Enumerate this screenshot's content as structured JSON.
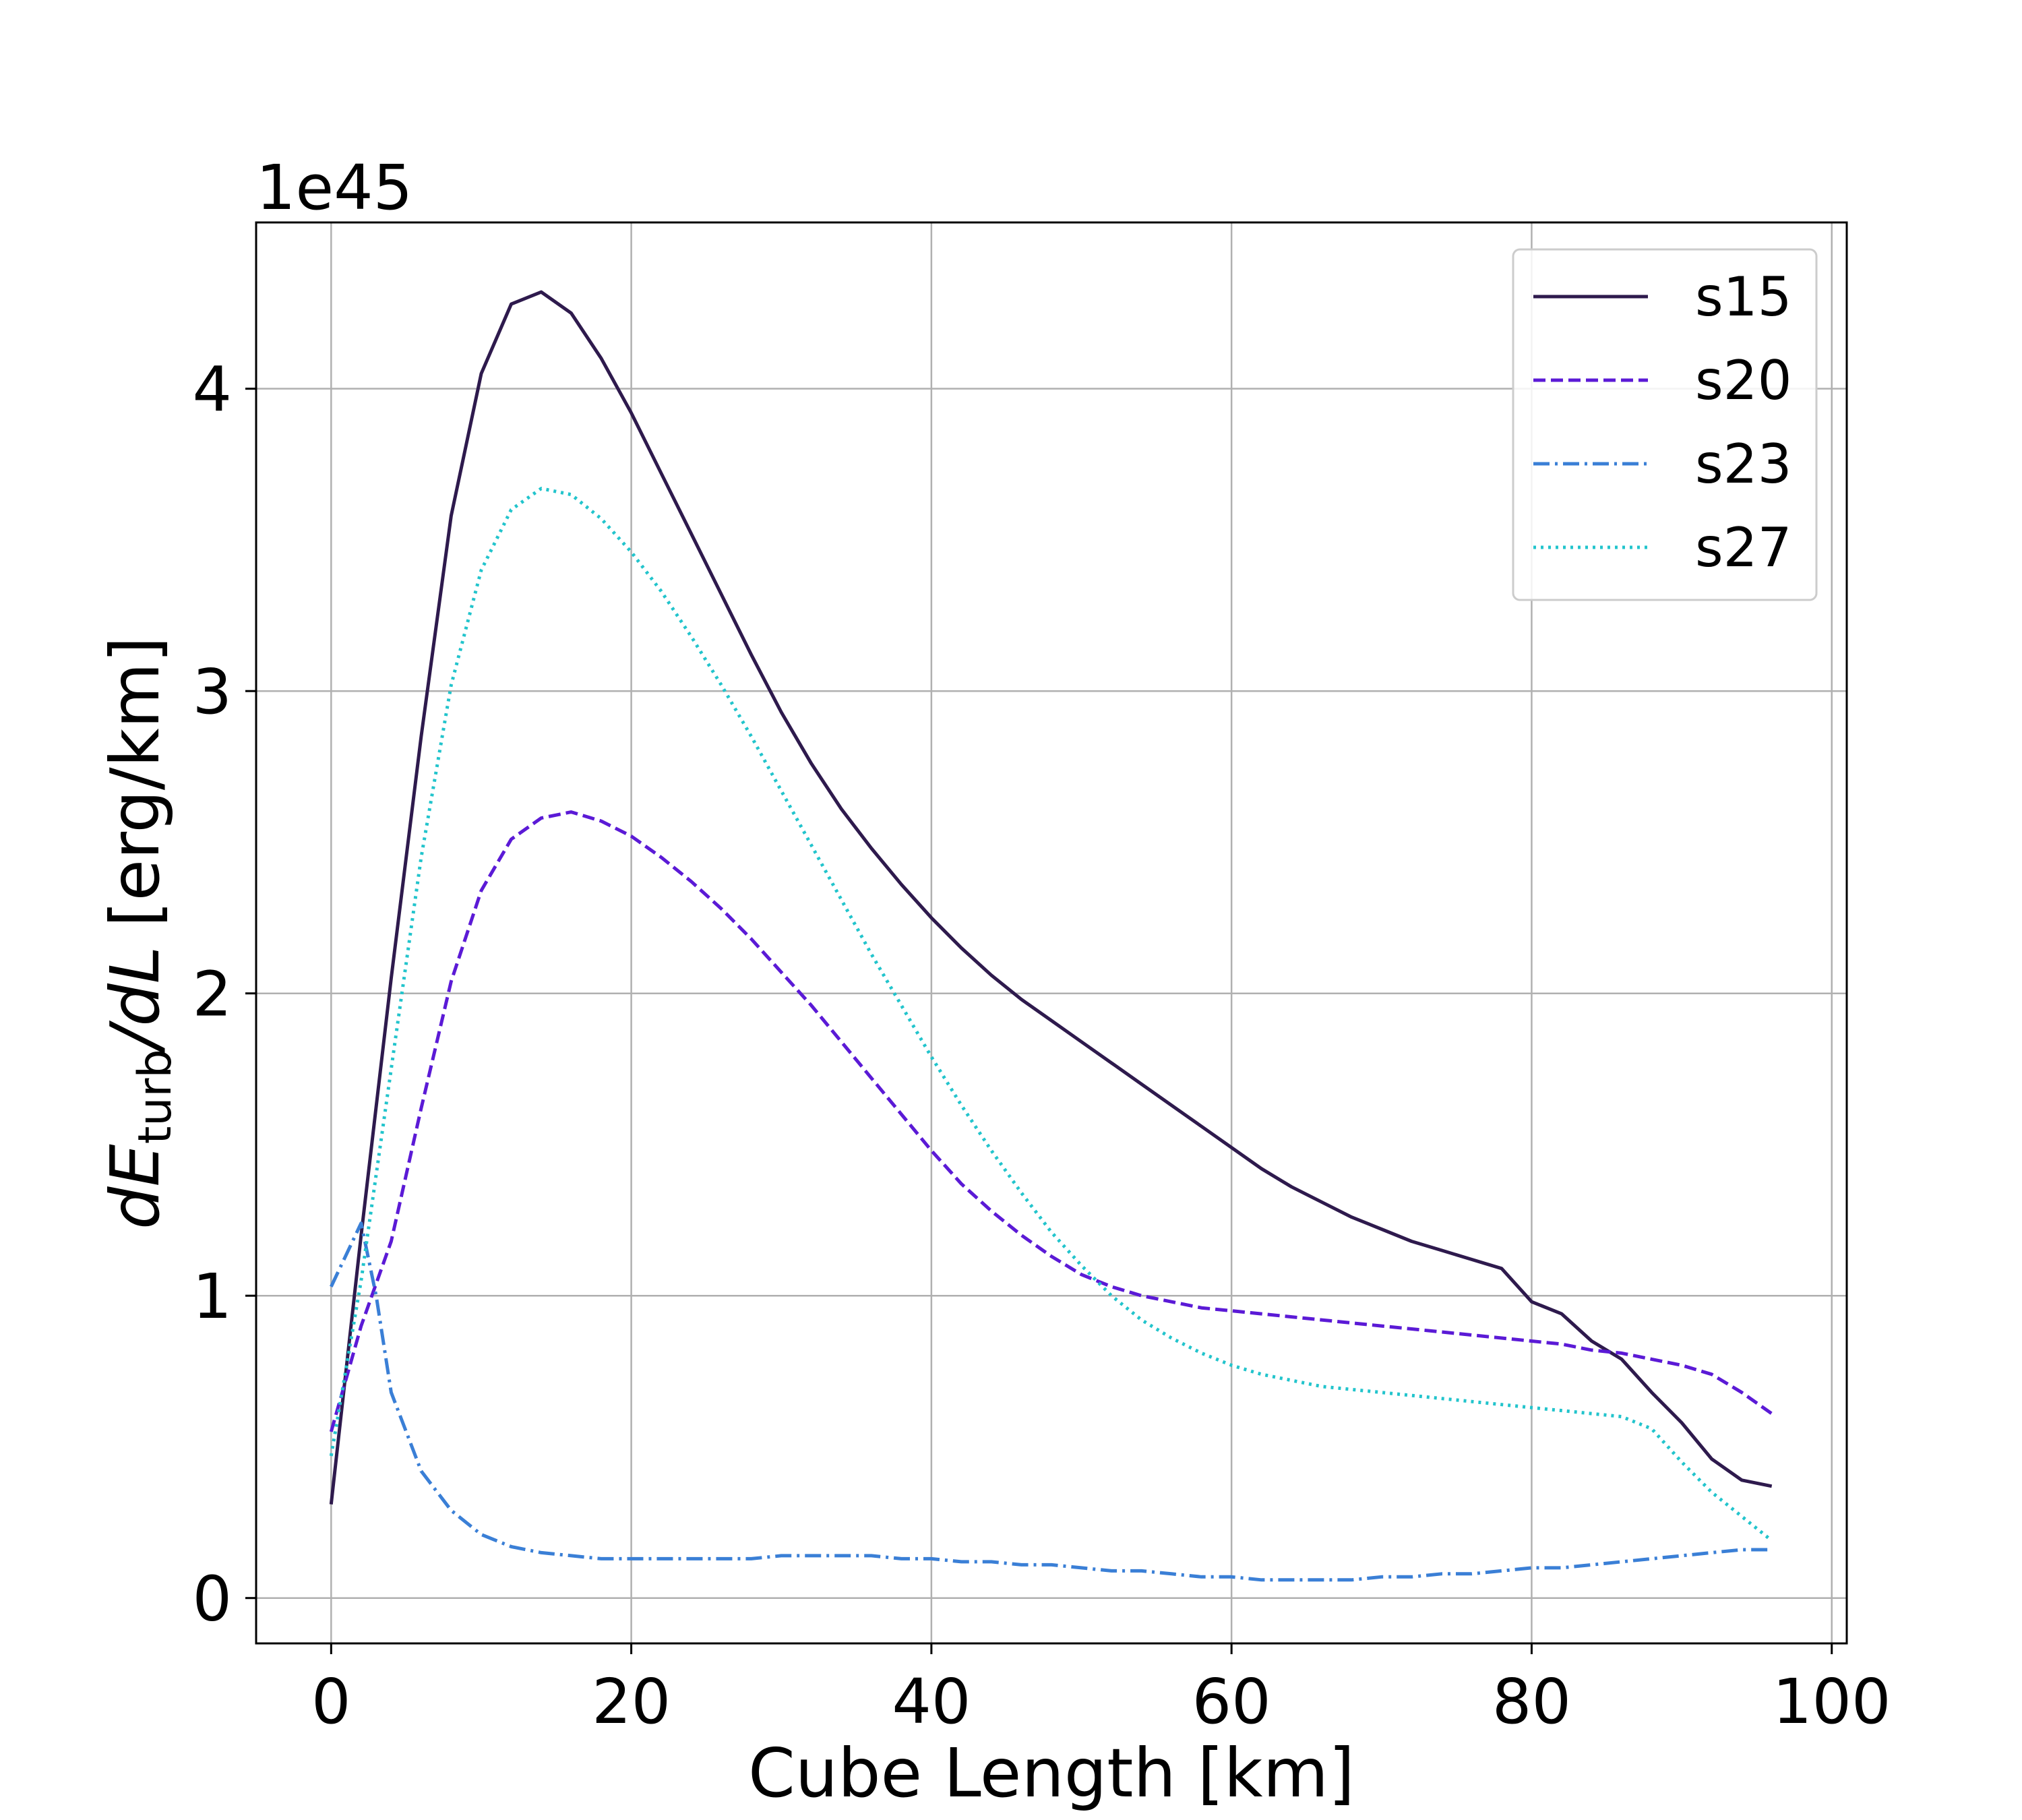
{
  "chart_data": {
    "type": "line",
    "title": "",
    "xlabel": "Cube Length [km]",
    "ylabel": {
      "main": "dE",
      "sub": "turb",
      "suffix": "/dL",
      "units": "[erg/km]"
    },
    "y_offset_label": "1e45",
    "xlim": [
      -5,
      101
    ],
    "ylim": [
      -0.15,
      4.55
    ],
    "x_ticks": [
      0,
      20,
      40,
      60,
      80,
      100
    ],
    "x_tick_labels": [
      "0",
      "20",
      "40",
      "60",
      "80",
      "100"
    ],
    "y_ticks": [
      0,
      1,
      2,
      3,
      4
    ],
    "y_tick_labels": [
      "0",
      "1",
      "2",
      "3",
      "4"
    ],
    "grid": true,
    "legend_position": "top-right",
    "series": [
      {
        "name": "s15",
        "color": "#2e1a4d",
        "dash": "solid",
        "x": [
          0,
          2,
          4,
          6,
          8,
          10,
          12,
          14,
          16,
          18,
          20,
          22,
          24,
          26,
          28,
          30,
          32,
          34,
          36,
          38,
          40,
          42,
          44,
          46,
          48,
          50,
          52,
          54,
          56,
          58,
          60,
          62,
          64,
          66,
          68,
          70,
          72,
          74,
          76,
          78,
          80,
          82,
          84,
          86,
          88,
          90,
          92,
          94,
          96
        ],
        "y": [
          0.31,
          1.2,
          2.05,
          2.85,
          3.58,
          4.05,
          4.28,
          4.32,
          4.25,
          4.1,
          3.92,
          3.72,
          3.52,
          3.32,
          3.12,
          2.93,
          2.76,
          2.61,
          2.48,
          2.36,
          2.25,
          2.15,
          2.06,
          1.98,
          1.91,
          1.84,
          1.77,
          1.7,
          1.63,
          1.56,
          1.49,
          1.42,
          1.36,
          1.31,
          1.26,
          1.22,
          1.18,
          1.15,
          1.12,
          1.09,
          0.98,
          0.94,
          0.85,
          0.79,
          0.68,
          0.58,
          0.46,
          0.39,
          0.37
        ]
      },
      {
        "name": "s20",
        "color": "#5b1ad6",
        "dash": "dashed",
        "x": [
          0,
          2,
          4,
          6,
          8,
          10,
          12,
          14,
          16,
          18,
          20,
          22,
          24,
          26,
          28,
          30,
          32,
          34,
          36,
          38,
          40,
          42,
          44,
          46,
          48,
          50,
          52,
          54,
          56,
          58,
          60,
          62,
          64,
          66,
          68,
          70,
          72,
          74,
          76,
          78,
          80,
          82,
          84,
          86,
          88,
          90,
          92,
          94,
          96
        ],
        "y": [
          0.55,
          0.9,
          1.18,
          1.62,
          2.04,
          2.34,
          2.51,
          2.58,
          2.6,
          2.57,
          2.52,
          2.45,
          2.37,
          2.28,
          2.18,
          2.07,
          1.96,
          1.84,
          1.72,
          1.6,
          1.48,
          1.37,
          1.28,
          1.2,
          1.13,
          1.07,
          1.03,
          1.0,
          0.98,
          0.96,
          0.95,
          0.94,
          0.93,
          0.92,
          0.91,
          0.9,
          0.89,
          0.88,
          0.87,
          0.86,
          0.85,
          0.84,
          0.82,
          0.81,
          0.79,
          0.77,
          0.74,
          0.68,
          0.61
        ]
      },
      {
        "name": "s23",
        "color": "#3a7fd6",
        "dash": "dashdot",
        "x": [
          0,
          2,
          3,
          4,
          6,
          8,
          10,
          12,
          14,
          16,
          18,
          20,
          22,
          24,
          26,
          28,
          30,
          32,
          34,
          36,
          38,
          40,
          42,
          44,
          46,
          48,
          50,
          52,
          54,
          56,
          58,
          60,
          62,
          64,
          66,
          68,
          70,
          72,
          74,
          76,
          78,
          80,
          82,
          84,
          86,
          88,
          90,
          92,
          94,
          96
        ],
        "y": [
          1.03,
          1.24,
          1.0,
          0.68,
          0.42,
          0.29,
          0.21,
          0.17,
          0.15,
          0.14,
          0.13,
          0.13,
          0.13,
          0.13,
          0.13,
          0.13,
          0.14,
          0.14,
          0.14,
          0.14,
          0.13,
          0.13,
          0.12,
          0.12,
          0.11,
          0.11,
          0.1,
          0.09,
          0.09,
          0.08,
          0.07,
          0.07,
          0.06,
          0.06,
          0.06,
          0.06,
          0.07,
          0.07,
          0.08,
          0.08,
          0.09,
          0.1,
          0.1,
          0.11,
          0.12,
          0.13,
          0.14,
          0.15,
          0.16,
          0.16
        ]
      },
      {
        "name": "s27",
        "color": "#22c4cc",
        "dash": "dotted",
        "x": [
          0,
          2,
          4,
          6,
          8,
          10,
          12,
          14,
          16,
          18,
          20,
          22,
          24,
          26,
          28,
          30,
          32,
          34,
          36,
          38,
          40,
          42,
          44,
          46,
          48,
          50,
          52,
          54,
          56,
          58,
          60,
          62,
          64,
          66,
          68,
          70,
          72,
          74,
          76,
          78,
          80,
          82,
          84,
          86,
          88,
          90,
          92,
          94,
          96
        ],
        "y": [
          0.47,
          1.05,
          1.75,
          2.45,
          3.02,
          3.4,
          3.6,
          3.67,
          3.65,
          3.57,
          3.46,
          3.33,
          3.18,
          3.02,
          2.85,
          2.67,
          2.49,
          2.31,
          2.13,
          1.96,
          1.79,
          1.63,
          1.48,
          1.34,
          1.21,
          1.1,
          1.0,
          0.92,
          0.86,
          0.81,
          0.77,
          0.74,
          0.72,
          0.7,
          0.69,
          0.68,
          0.67,
          0.66,
          0.65,
          0.64,
          0.63,
          0.62,
          0.61,
          0.6,
          0.56,
          0.45,
          0.35,
          0.27,
          0.19
        ]
      }
    ]
  }
}
